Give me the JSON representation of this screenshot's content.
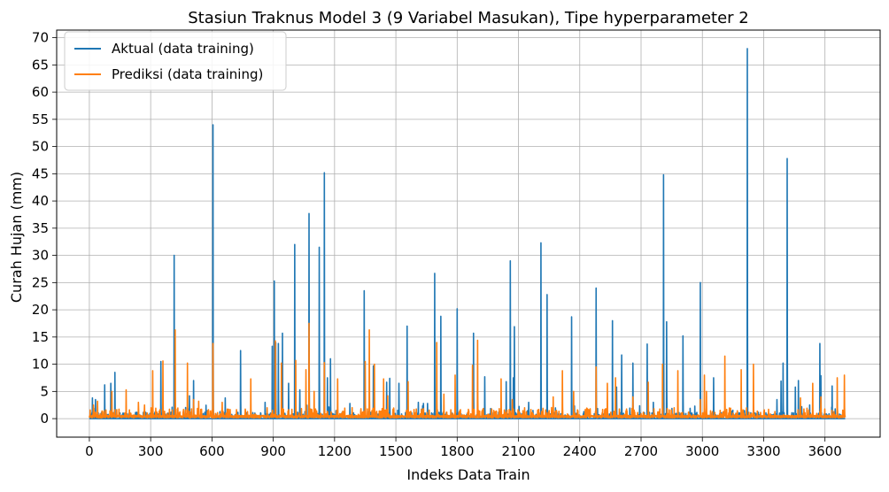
{
  "chart_data": {
    "type": "line",
    "title": "Stasiun Traknus Model 3 (9 Variabel Masukan), Tipe hyperparameter 2",
    "xlabel": "Indeks Data Train",
    "ylabel": "Curah Hujan (mm)",
    "xlim": [
      -160,
      3870
    ],
    "ylim": [
      -3.4,
      71.4
    ],
    "xticks": [
      0,
      300,
      600,
      900,
      1200,
      1500,
      1800,
      2100,
      2400,
      2700,
      3000,
      3300,
      3600
    ],
    "yticks": [
      0,
      5,
      10,
      15,
      20,
      25,
      30,
      35,
      40,
      45,
      50,
      55,
      60,
      65,
      70
    ],
    "grid": true,
    "legend_position": "top-left",
    "series": [
      {
        "name": "Aktual (data training)",
        "color": "#1f77b4",
        "peaks": [
          [
            15,
            3.8
          ],
          [
            30,
            3.5
          ],
          [
            75,
            6.2
          ],
          [
            105,
            6.5
          ],
          [
            125,
            8.5
          ],
          [
            350,
            10.5
          ],
          [
            415,
            30.0
          ],
          [
            490,
            4.2
          ],
          [
            510,
            7.0
          ],
          [
            605,
            54.0
          ],
          [
            665,
            3.8
          ],
          [
            740,
            12.5
          ],
          [
            860,
            3.0
          ],
          [
            895,
            13.3
          ],
          [
            905,
            25.3
          ],
          [
            912,
            14.0
          ],
          [
            925,
            13.8
          ],
          [
            945,
            15.7
          ],
          [
            975,
            6.5
          ],
          [
            1005,
            32.0
          ],
          [
            1030,
            5.3
          ],
          [
            1075,
            37.7
          ],
          [
            1125,
            31.5
          ],
          [
            1150,
            45.2
          ],
          [
            1165,
            7.5
          ],
          [
            1180,
            11.0
          ],
          [
            1275,
            2.8
          ],
          [
            1345,
            23.5
          ],
          [
            1390,
            9.7
          ],
          [
            1455,
            6.7
          ],
          [
            1470,
            7.4
          ],
          [
            1515,
            6.5
          ],
          [
            1555,
            17.0
          ],
          [
            1610,
            3.0
          ],
          [
            1635,
            2.8
          ],
          [
            1655,
            2.8
          ],
          [
            1690,
            26.7
          ],
          [
            1720,
            18.8
          ],
          [
            1800,
            20.2
          ],
          [
            1880,
            15.7
          ],
          [
            1935,
            7.7
          ],
          [
            2040,
            6.8
          ],
          [
            2060,
            29.0
          ],
          [
            2075,
            7.5
          ],
          [
            2080,
            16.9
          ],
          [
            2150,
            3.0
          ],
          [
            2210,
            32.3
          ],
          [
            2240,
            22.8
          ],
          [
            2360,
            18.7
          ],
          [
            2480,
            24.0
          ],
          [
            2560,
            18.0
          ],
          [
            2580,
            5.8
          ],
          [
            2605,
            11.7
          ],
          [
            2660,
            10.2
          ],
          [
            2730,
            13.7
          ],
          [
            2760,
            3.0
          ],
          [
            2810,
            44.8
          ],
          [
            2825,
            17.8
          ],
          [
            2905,
            15.2
          ],
          [
            2990,
            25.0
          ],
          [
            3055,
            7.5
          ],
          [
            3220,
            68.0
          ],
          [
            3365,
            3.5
          ],
          [
            3385,
            6.9
          ],
          [
            3395,
            10.2
          ],
          [
            3415,
            47.8
          ],
          [
            3455,
            5.8
          ],
          [
            3470,
            7.0
          ],
          [
            3525,
            2.5
          ],
          [
            3575,
            13.8
          ],
          [
            3580,
            7.9
          ],
          [
            3635,
            6.0
          ],
          [
            3650,
            1.8
          ]
        ]
      },
      {
        "name": "Prediksi (data training)",
        "color": "#ff7f0e",
        "peaks": [
          [
            20,
            2.5
          ],
          [
            40,
            3.2
          ],
          [
            110,
            5.0
          ],
          [
            180,
            5.3
          ],
          [
            240,
            3.0
          ],
          [
            270,
            2.5
          ],
          [
            310,
            8.8
          ],
          [
            360,
            10.6
          ],
          [
            420,
            16.3
          ],
          [
            480,
            10.2
          ],
          [
            510,
            3.5
          ],
          [
            535,
            3.2
          ],
          [
            605,
            13.8
          ],
          [
            650,
            3.0
          ],
          [
            790,
            7.3
          ],
          [
            870,
            2.0
          ],
          [
            910,
            14.3
          ],
          [
            940,
            10.2
          ],
          [
            1010,
            10.7
          ],
          [
            1060,
            9.0
          ],
          [
            1075,
            17.5
          ],
          [
            1100,
            5.0
          ],
          [
            1150,
            10.3
          ],
          [
            1215,
            7.3
          ],
          [
            1350,
            10.5
          ],
          [
            1370,
            16.3
          ],
          [
            1395,
            10.0
          ],
          [
            1440,
            7.3
          ],
          [
            1460,
            4.2
          ],
          [
            1560,
            6.8
          ],
          [
            1700,
            14.0
          ],
          [
            1735,
            4.5
          ],
          [
            1790,
            8.0
          ],
          [
            1875,
            9.8
          ],
          [
            1900,
            14.4
          ],
          [
            2015,
            7.3
          ],
          [
            2070,
            3.5
          ],
          [
            2130,
            2.0
          ],
          [
            2270,
            4.0
          ],
          [
            2315,
            8.8
          ],
          [
            2370,
            5.0
          ],
          [
            2480,
            9.5
          ],
          [
            2535,
            6.5
          ],
          [
            2575,
            7.5
          ],
          [
            2660,
            4.0
          ],
          [
            2735,
            6.7
          ],
          [
            2805,
            10.0
          ],
          [
            2880,
            8.8
          ],
          [
            2990,
            3.5
          ],
          [
            3010,
            8.0
          ],
          [
            3020,
            5.0
          ],
          [
            3110,
            11.5
          ],
          [
            3190,
            9.0
          ],
          [
            3250,
            10.0
          ],
          [
            3480,
            3.8
          ],
          [
            3540,
            6.5
          ],
          [
            3580,
            4.0
          ],
          [
            3660,
            7.5
          ],
          [
            3695,
            8.0
          ]
        ]
      }
    ]
  }
}
